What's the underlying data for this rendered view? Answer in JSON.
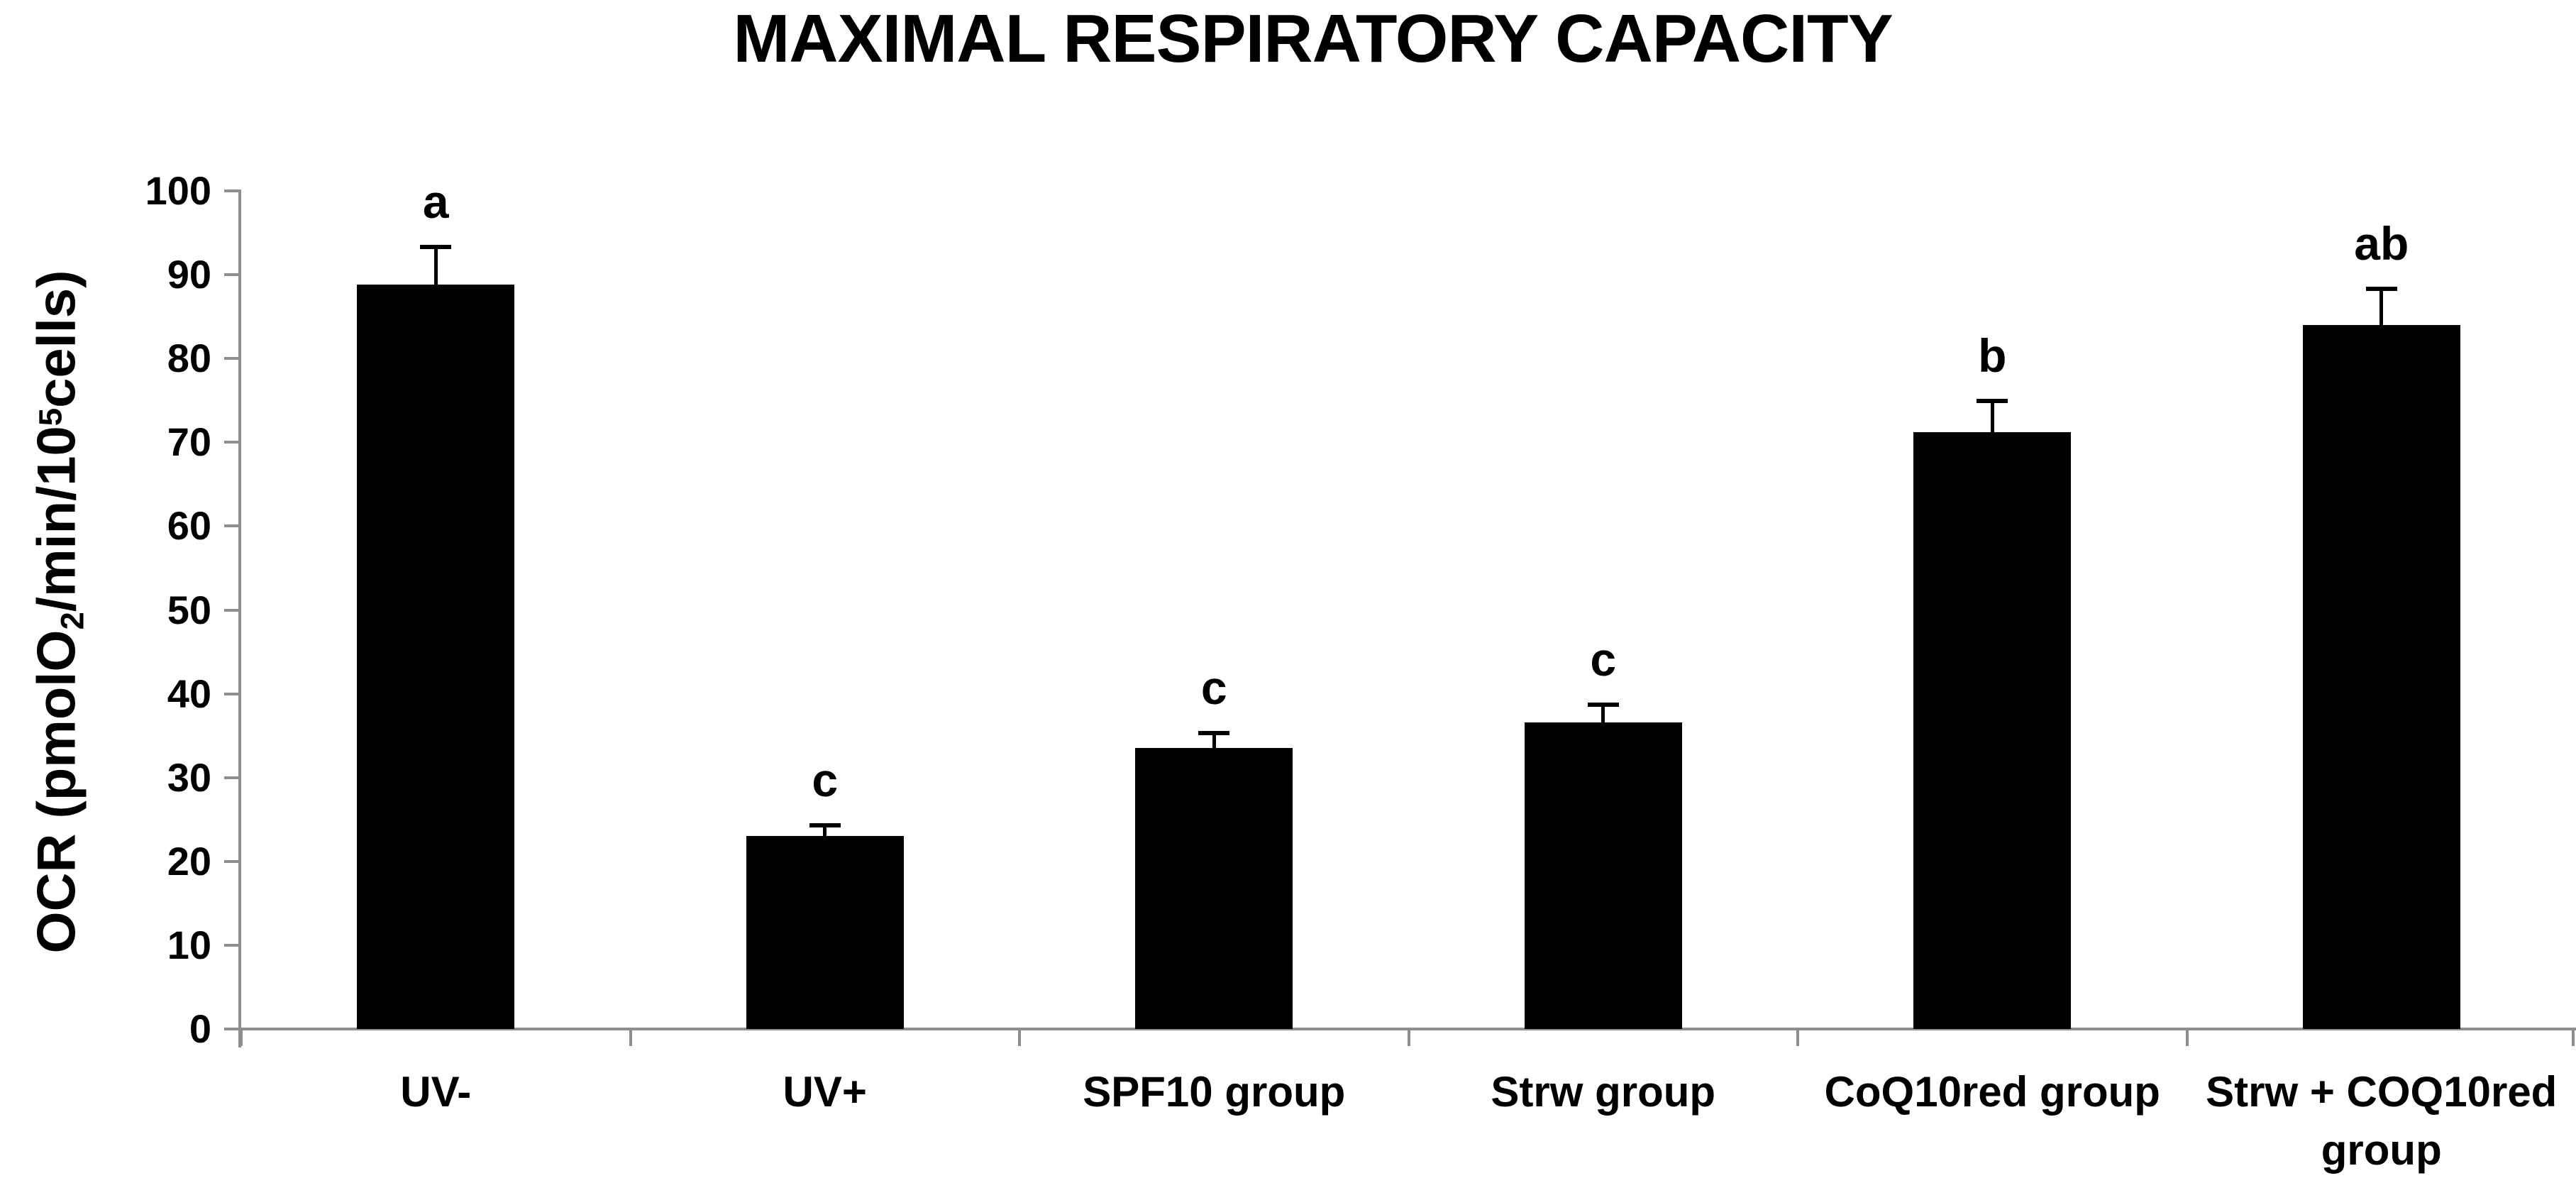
{
  "title": "MAXIMAL RESPIRATORY CAPACITY",
  "y_axis_label_parts": {
    "pre": "OCR (pmolO",
    "sub": "2",
    "mid": "/min/10",
    "sup": "5",
    "post": "cells)"
  },
  "chart_data": {
    "type": "bar",
    "title": "MAXIMAL RESPIRATORY CAPACITY",
    "ylabel": "OCR (pmolO2/min/10^5 cells)",
    "xlabel": "",
    "categories": [
      "UV-",
      "UV+",
      "SPF10 group",
      "Strw group",
      "CoQ10red group",
      "Strw + COQ10red\ngroup"
    ],
    "values": [
      88.8,
      23.0,
      33.5,
      36.6,
      71.2,
      84.0
    ],
    "errors": [
      4.5,
      1.3,
      1.8,
      2.1,
      3.7,
      4.3
    ],
    "sig_letters": [
      "a",
      "c",
      "c",
      "c",
      "b",
      "ab"
    ],
    "ylim": [
      0,
      100
    ],
    "yticks": [
      0,
      10,
      20,
      30,
      40,
      50,
      60,
      70,
      80,
      90,
      100
    ],
    "grid": false,
    "legend_position": "none",
    "bar_color": "#000000",
    "axis_color": "#8e8e8e",
    "text_color": "#000000"
  }
}
